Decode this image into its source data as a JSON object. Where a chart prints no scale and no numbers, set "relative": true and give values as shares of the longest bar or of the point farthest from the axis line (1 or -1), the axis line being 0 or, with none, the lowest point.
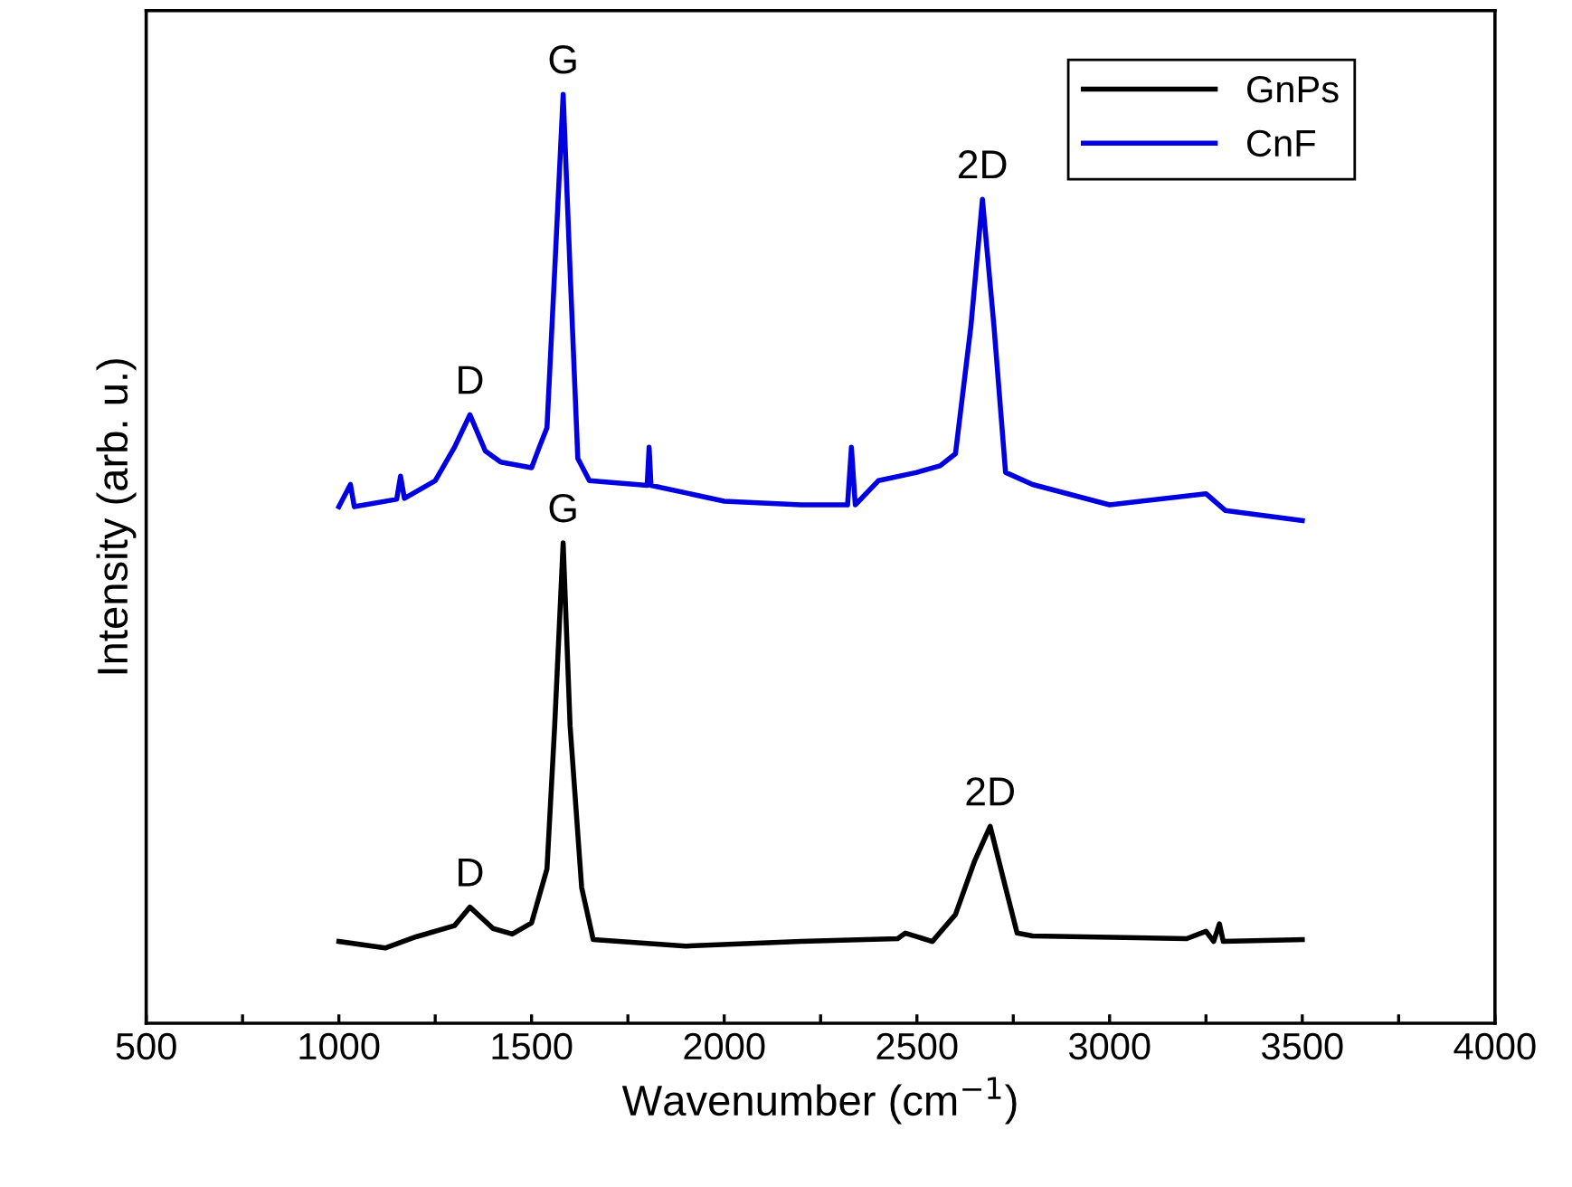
{
  "chart_data": {
    "type": "line",
    "relative": true,
    "xlabel": "Wavenumber (cm$^{−1}$)",
    "ylabel": "Intensity (arb. u.)",
    "xlim": [
      500,
      4000
    ],
    "xticks": [
      500,
      {
        "value": 750,
        "label": null
      },
      1000,
      {
        "value": 1250,
        "label": null
      },
      1500,
      {
        "value": 1750,
        "label": null
      },
      2000,
      {
        "value": 2250,
        "label": null
      },
      2500,
      {
        "value": 2750,
        "label": null
      },
      3000,
      {
        "value": 3250,
        "label": null
      },
      3500,
      {
        "value": 3750,
        "label": null
      },
      4000
    ],
    "legend": "top right",
    "grid": false,
    "tick_labels": "x",
    "series": [
      {
        "name": "GnPs",
        "color": "#000000",
        "x": [
          1000,
          1120,
          1200,
          1300,
          1340,
          1400,
          1450,
          1500,
          1540,
          1560,
          1582,
          1600,
          1630,
          1660,
          1900,
          2200,
          2450,
          2470,
          2540,
          2600,
          2650,
          2690,
          2730,
          2760,
          2800,
          3200,
          3250,
          3270,
          3285,
          3295,
          3500
        ],
        "values": [
          0.088,
          0.081,
          0.093,
          0.105,
          0.125,
          0.102,
          0.096,
          0.108,
          0.166,
          0.32,
          0.517,
          0.32,
          0.146,
          0.09,
          0.083,
          0.088,
          0.091,
          0.097,
          0.088,
          0.117,
          0.175,
          0.212,
          0.146,
          0.097,
          0.094,
          0.091,
          0.099,
          0.088,
          0.107,
          0.088,
          0.09
        ]
      },
      {
        "name": "CnF",
        "color": "#0000e0",
        "x": [
          1000,
          1030,
          1040,
          1150,
          1160,
          1170,
          1250,
          1300,
          1340,
          1380,
          1420,
          1500,
          1520,
          1540,
          1560,
          1582,
          1600,
          1620,
          1650,
          1800,
          1805,
          1810,
          2000,
          2200,
          2320,
          2330,
          2340,
          2400,
          2500,
          2560,
          2600,
          2640,
          2670,
          2700,
          2730,
          2800,
          3000,
          3250,
          3300,
          3500
        ],
        "values": [
          0.556,
          0.58,
          0.556,
          0.564,
          0.589,
          0.565,
          0.584,
          0.62,
          0.655,
          0.616,
          0.604,
          0.598,
          0.62,
          0.641,
          0.81,
          1.0,
          0.81,
          0.608,
          0.584,
          0.579,
          0.62,
          0.579,
          0.562,
          0.558,
          0.558,
          0.62,
          0.558,
          0.584,
          0.593,
          0.6,
          0.613,
          0.75,
          0.887,
          0.75,
          0.593,
          0.58,
          0.558,
          0.57,
          0.552,
          0.541
        ]
      }
    ],
    "annotations": [
      {
        "text": "D",
        "x": 1340,
        "y": 0.125
      },
      {
        "text": "G",
        "x": 1582,
        "y": 0.517
      },
      {
        "text": "2D",
        "x": 2690,
        "y": 0.212
      },
      {
        "text": "D",
        "x": 1340,
        "y": 0.655
      },
      {
        "text": "G",
        "x": 1582,
        "y": 1.0
      },
      {
        "text": "2D",
        "x": 2670,
        "y": 0.887
      }
    ]
  }
}
